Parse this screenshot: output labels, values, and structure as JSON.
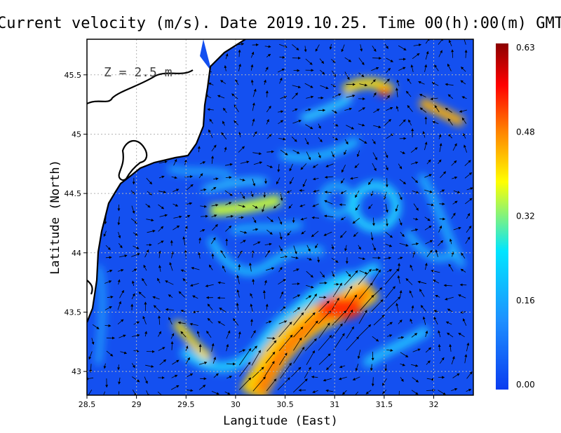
{
  "title": "Current velocity (m/s). Date 2019.10.25. Time 00(h):00(m) GMT",
  "depth_label": "Z = 2.5 m",
  "xlabel": "Langitude (East)",
  "ylabel": "Latitude (North)",
  "xticks": [
    "28.5",
    "29",
    "29.5",
    "30",
    "30.5",
    "31",
    "31.5",
    "32"
  ],
  "yticks": [
    "43",
    "43.5",
    "44",
    "44.5",
    "45",
    "45.5"
  ],
  "colorbar": {
    "ticks": [
      "0.63",
      "0.48",
      "0.32",
      "0.16",
      "0.00"
    ],
    "min": 0.0,
    "max": 0.63,
    "colors": [
      "#0a3cf0",
      "#1e90ff",
      "#00e5ff",
      "#ffff00",
      "#ff8000",
      "#ff0000",
      "#8b0000"
    ]
  },
  "colors": {
    "sea_low": "#1450f0",
    "land": "#ffffff",
    "coast": "#000000",
    "grid": "#b4b4b4"
  },
  "chart_data": {
    "type": "heatmap",
    "title": "Current velocity (m/s). Date 2019.10.25. Time 00(h):00(m) GMT",
    "xlabel": "Langitude (East)",
    "ylabel": "Latitude (North)",
    "xlim": [
      28.5,
      32.4
    ],
    "ylim": [
      42.8,
      45.8
    ],
    "value_range": [
      0.0,
      0.63
    ],
    "grid": true,
    "legend": "colorbar-right",
    "features": [
      {
        "kind": "jet",
        "lon": [
          30.2,
          30.5,
          30.8,
          31.05,
          31.25
        ],
        "lat": [
          42.85,
          43.15,
          43.35,
          43.48,
          43.6
        ],
        "speed": 0.55
      },
      {
        "kind": "jet",
        "lon": [
          29.6,
          29.85,
          30.1,
          30.35
        ],
        "lat": [
          44.38,
          44.42,
          44.45,
          44.52
        ],
        "speed": 0.33
      },
      {
        "kind": "eddy",
        "lon": 31.45,
        "lat": 44.45,
        "speed": 0.28
      },
      {
        "kind": "max",
        "lon": 31.5,
        "lat": 45.35,
        "speed": 0.55
      },
      {
        "kind": "jet",
        "lon": [
          31.9,
          32.0,
          32.1,
          32.2
        ],
        "lat": [
          45.25,
          45.22,
          45.18,
          45.12
        ],
        "speed": 0.45
      }
    ]
  }
}
